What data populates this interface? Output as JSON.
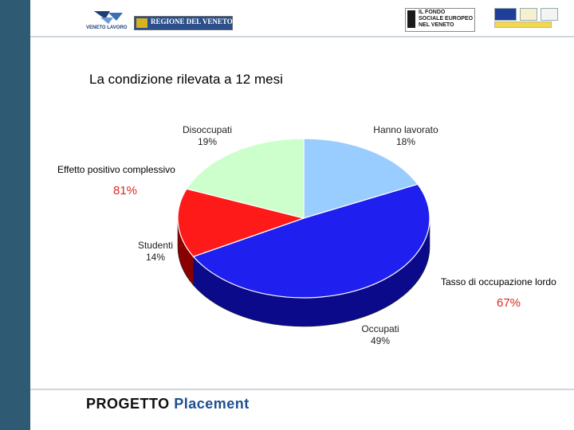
{
  "header": {
    "veneto_lavoro": "VENETO LAVORO",
    "regione": "REGIONE DEL VENETO",
    "fse_lines": [
      "IL FONDO",
      "SOCIALE EUROPEO",
      "NEL VENETO"
    ]
  },
  "slide": {
    "title": "La condizione rilevata a 12 mesi"
  },
  "annotations": {
    "positive_effect_label": "Effetto positivo complessivo",
    "positive_effect_value": "81%",
    "employment_rate_label": "Tasso di occupazione lordo",
    "employment_rate_value": "67%"
  },
  "footer": {
    "brand_bold": "PROGETTO",
    "brand_accent": "Placement"
  },
  "chart_data": {
    "type": "pie",
    "title": "",
    "slices": [
      {
        "name": "Hanno lavorato",
        "value": 18,
        "label": "18%",
        "color": "#99ccff",
        "side_color": "#5f89b5"
      },
      {
        "name": "Occupati",
        "value": 49,
        "label": "49%",
        "color": "#1f1ff0",
        "side_color": "#0a0a8a"
      },
      {
        "name": "Studenti",
        "value": 14,
        "label": "14%",
        "color": "#ff1a1a",
        "side_color": "#8a0000"
      },
      {
        "name": "Disoccupati",
        "value": 19,
        "label": "19%",
        "color": "#ccffcc",
        "side_color": "#8fb08f"
      }
    ],
    "style": "3d-tilted"
  }
}
